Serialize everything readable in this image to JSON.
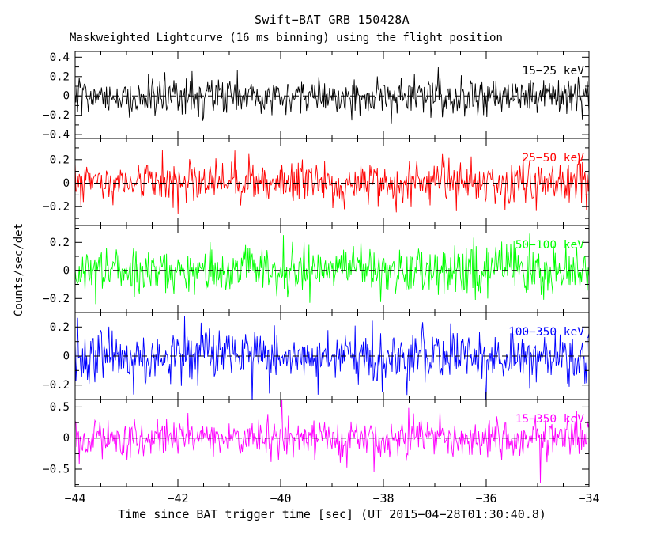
{
  "chart_data": {
    "type": "line",
    "title": "Swift−BAT GRB 150428A",
    "subtitle": "Maskweighted Lightcurve (16 ms binning) using the flight position",
    "xlabel": "Time since BAT trigger time [sec] (UT 2015−04−28T01:30:40.8)",
    "ylabel": "Counts/sec/det",
    "x_range": [
      -44,
      -34
    ],
    "x_major_ticks": [
      -44,
      -42,
      -40,
      -38,
      -36,
      -34
    ],
    "x_minor_step": 0.5,
    "bin_seconds": 0.016,
    "n_bins": 625,
    "grid": false,
    "legend": "in-panel colored energy-band labels, top right of each panel",
    "description": "Five vertically stacked panels of mask-weighted noise-like count-rate lightcurves, one per energy band, each fluctuating randomly about a dashed zero line; no burst visible in the plotted pre-trigger interval.",
    "panels": [
      {
        "label": "15−25 keV",
        "color": "#000000",
        "ylim": [
          -0.44,
          0.46
        ],
        "yticks": [
          0.4,
          0.2,
          0.0,
          -0.2,
          -0.4
        ],
        "ytick_labels": [
          "0.4",
          "0.2",
          "0",
          "-0.2",
          "-0.4"
        ],
        "minor_step": 0.1,
        "mean": 0.0,
        "noise_sigma": 0.095,
        "seed": 101
      },
      {
        "label": "25−50 keV",
        "color": "#ff0000",
        "ylim": [
          -0.36,
          0.38
        ],
        "yticks": [
          0.2,
          0.0,
          -0.2
        ],
        "ytick_labels": [
          "0.2",
          "0",
          "-0.2"
        ],
        "minor_step": 0.1,
        "mean": 0.0,
        "noise_sigma": 0.09,
        "seed": 202
      },
      {
        "label": "50−100 keV",
        "color": "#00ff00",
        "ylim": [
          -0.3,
          0.32
        ],
        "yticks": [
          0.2,
          0.0,
          -0.2
        ],
        "ytick_labels": [
          "0.2",
          "0",
          "-0.2"
        ],
        "minor_step": 0.1,
        "mean": 0.0,
        "noise_sigma": 0.085,
        "seed": 303
      },
      {
        "label": "100−350 keV",
        "color": "#0000ff",
        "ylim": [
          -0.3,
          0.3
        ],
        "yticks": [
          0.2,
          0.0,
          -0.2
        ],
        "ytick_labels": [
          "0.2",
          "0",
          "-0.2"
        ],
        "minor_step": 0.1,
        "mean": 0.0,
        "noise_sigma": 0.09,
        "seed": 404
      },
      {
        "label": "15−350 keV",
        "color": "#ff00ff",
        "ylim": [
          -0.78,
          0.62
        ],
        "yticks": [
          0.5,
          0.0,
          -0.5
        ],
        "ytick_labels": [
          "0.5",
          "0",
          "-0.5"
        ],
        "minor_step": 0.25,
        "mean": 0.0,
        "noise_sigma": 0.16,
        "seed": 505
      }
    ],
    "zero_line": {
      "style": "dashed",
      "color": "#000000"
    }
  }
}
